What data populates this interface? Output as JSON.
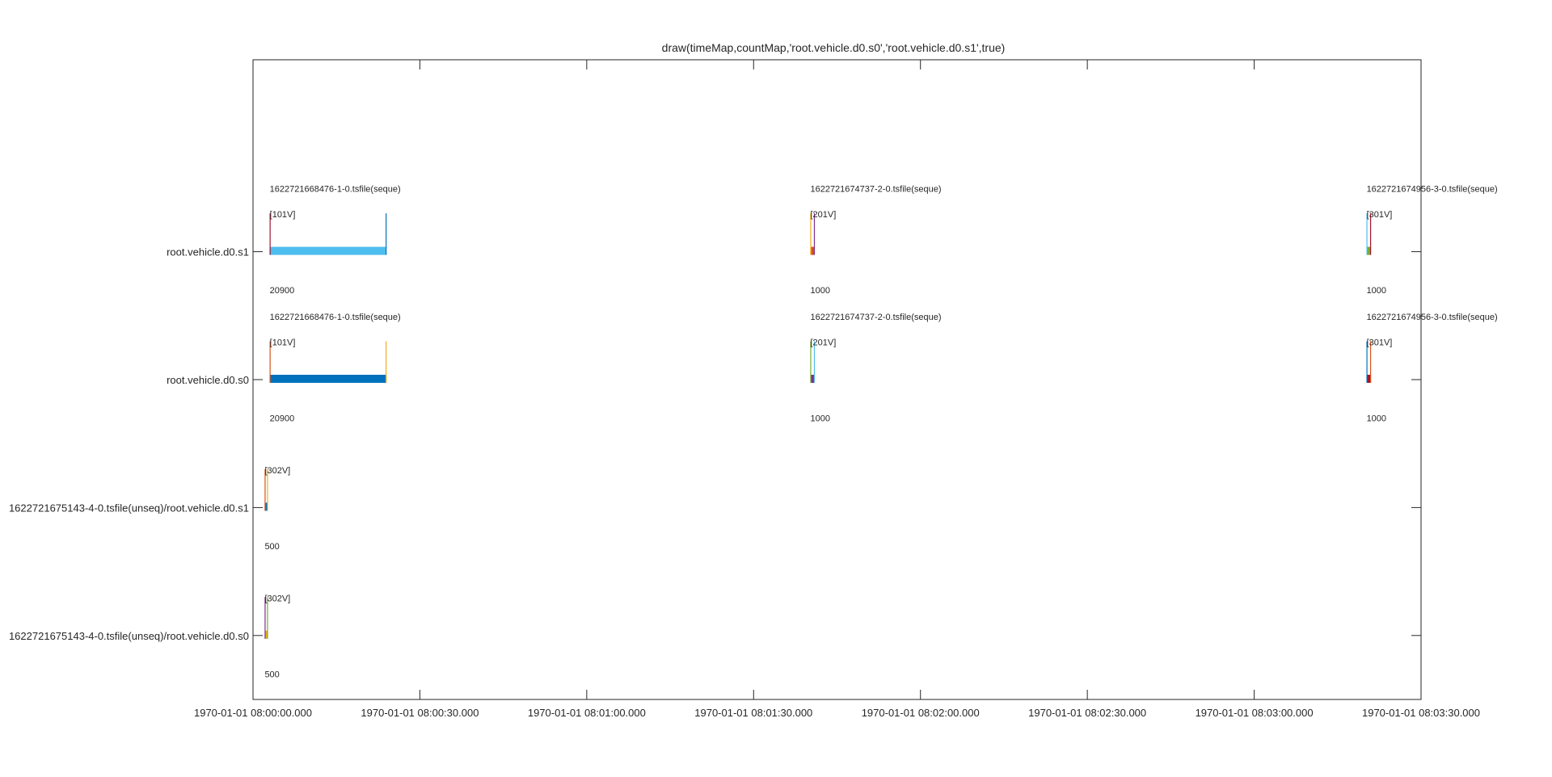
{
  "chart_data": {
    "type": "bar",
    "title": "draw(timeMap,countMap,'root.vehicle.d0.s0','root.vehicle.d0.s1',true)",
    "xlabel": "",
    "ylabel": "",
    "xlim_seconds": [
      0,
      210
    ],
    "ylim": [
      0.5,
      5.5
    ],
    "grid": false,
    "x_ticks": [
      {
        "value": 0,
        "label": "1970-01-01 08:00:00.000"
      },
      {
        "value": 30,
        "label": "1970-01-01 08:00:30.000"
      },
      {
        "value": 60,
        "label": "1970-01-01 08:01:00.000"
      },
      {
        "value": 90,
        "label": "1970-01-01 08:01:30.000"
      },
      {
        "value": 120,
        "label": "1970-01-01 08:02:00.000"
      },
      {
        "value": 150,
        "label": "1970-01-01 08:02:30.000"
      },
      {
        "value": 180,
        "label": "1970-01-01 08:03:00.000"
      },
      {
        "value": 210,
        "label": "1970-01-01 08:03:30.000"
      }
    ],
    "y_ticks": [
      {
        "value": 1,
        "label": "1622721675143-4-0.tsfile(unseq)/root.vehicle.d0.s0"
      },
      {
        "value": 2,
        "label": "1622721675143-4-0.tsfile(unseq)/root.vehicle.d0.s1"
      },
      {
        "value": 3,
        "label": "root.vehicle.d0.s0"
      },
      {
        "value": 4,
        "label": "root.vehicle.d0.s1"
      }
    ],
    "chunks": [
      {
        "y": 4,
        "start": 3.0,
        "end": 24.0,
        "file": "1622721668476-1-0.tsfile(seque)",
        "version": "[101V]",
        "count": "20900",
        "bar_color": "#4DBEEE",
        "left_color": "#A2142F",
        "right_color": "#0072BD"
      },
      {
        "y": 4,
        "start": 100.2,
        "end": 101.0,
        "file": "1622721674737-2-0.tsfile(seque)",
        "version": "[201V]",
        "count": "1000",
        "bar_color": "#D95319",
        "left_color": "#EDB120",
        "right_color": "#7E2F8E"
      },
      {
        "y": 4,
        "start": 200.2,
        "end": 201.0,
        "file": "1622721674956-3-0.tsfile(seque)",
        "version": "[301V]",
        "count": "1000",
        "bar_color": "#77AC30",
        "left_color": "#4DBEEE",
        "right_color": "#A2142F"
      },
      {
        "y": 3,
        "start": 3.0,
        "end": 24.0,
        "file": "1622721668476-1-0.tsfile(seque)",
        "version": "[101V]",
        "count": "20900",
        "bar_color": "#0072BD",
        "left_color": "#D95319",
        "right_color": "#EDB120"
      },
      {
        "y": 3,
        "start": 100.2,
        "end": 101.0,
        "file": "1622721674737-2-0.tsfile(seque)",
        "version": "[201V]",
        "count": "1000",
        "bar_color": "#7E2F8E",
        "left_color": "#77AC30",
        "right_color": "#4DBEEE"
      },
      {
        "y": 3,
        "start": 200.2,
        "end": 201.0,
        "file": "1622721674956-3-0.tsfile(seque)",
        "version": "[301V]",
        "count": "1000",
        "bar_color": "#A2142F",
        "left_color": "#0072BD",
        "right_color": "#D95319"
      },
      {
        "y": 2,
        "start": 2.1,
        "end": 2.6,
        "file": "",
        "version": "[302V]",
        "count": "500",
        "bar_color": "#0072BD",
        "left_color": "#D95319",
        "right_color": "#EDB120"
      },
      {
        "y": 1,
        "start": 2.1,
        "end": 2.6,
        "file": "",
        "version": "[302V]",
        "count": "500",
        "bar_color": "#EDB120",
        "left_color": "#7E2F8E",
        "right_color": "#77AC30"
      }
    ]
  }
}
